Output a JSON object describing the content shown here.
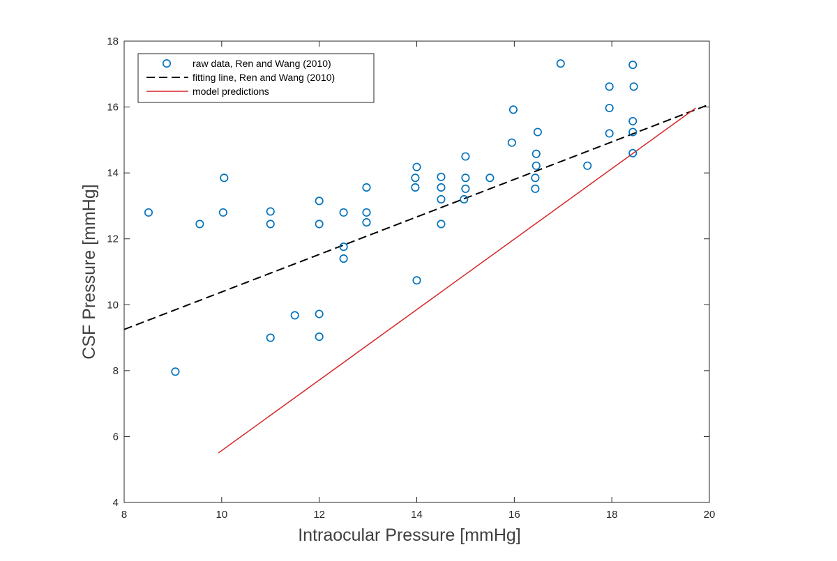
{
  "chart_data": {
    "type": "scatter",
    "xlabel": "Intraocular Pressure [mmHg]",
    "ylabel": "CSF Pressure [mmHg]",
    "xlim": [
      8,
      20
    ],
    "ylim": [
      4,
      18
    ],
    "xticks": [
      8,
      10,
      12,
      14,
      16,
      18,
      20
    ],
    "yticks": [
      4,
      6,
      8,
      10,
      12,
      14,
      16,
      18
    ],
    "grid": false,
    "legend_position": "top-left",
    "series": [
      {
        "name": "raw data, Ren and Wang (2010)",
        "kind": "scatter",
        "marker": "circle-open",
        "color": "#0072BD",
        "points": [
          [
            8.5,
            12.8
          ],
          [
            9.05,
            7.97
          ],
          [
            9.55,
            12.45
          ],
          [
            10.03,
            12.8
          ],
          [
            10.05,
            13.85
          ],
          [
            11.0,
            12.83
          ],
          [
            11.0,
            12.45
          ],
          [
            11.0,
            9.0
          ],
          [
            11.5,
            9.68
          ],
          [
            12.0,
            13.15
          ],
          [
            12.0,
            12.45
          ],
          [
            12.0,
            9.72
          ],
          [
            12.0,
            9.03
          ],
          [
            12.5,
            12.8
          ],
          [
            12.5,
            11.76
          ],
          [
            12.5,
            11.4
          ],
          [
            12.97,
            13.56
          ],
          [
            12.97,
            12.8
          ],
          [
            12.97,
            12.5
          ],
          [
            13.97,
            13.56
          ],
          [
            13.97,
            13.85
          ],
          [
            14.0,
            14.18
          ],
          [
            14.0,
            10.74
          ],
          [
            14.5,
            13.88
          ],
          [
            14.5,
            13.56
          ],
          [
            14.5,
            13.2
          ],
          [
            14.5,
            12.45
          ],
          [
            15.0,
            14.5
          ],
          [
            15.0,
            13.85
          ],
          [
            15.0,
            13.52
          ],
          [
            14.97,
            13.2
          ],
          [
            15.5,
            13.85
          ],
          [
            15.95,
            14.92
          ],
          [
            15.98,
            15.92
          ],
          [
            16.43,
            13.85
          ],
          [
            16.43,
            13.52
          ],
          [
            16.45,
            14.58
          ],
          [
            16.45,
            14.22
          ],
          [
            16.48,
            15.24
          ],
          [
            16.95,
            17.32
          ],
          [
            17.5,
            14.22
          ],
          [
            17.95,
            16.62
          ],
          [
            17.95,
            15.97
          ],
          [
            17.95,
            15.2
          ],
          [
            18.43,
            17.28
          ],
          [
            18.43,
            15.57
          ],
          [
            18.43,
            15.24
          ],
          [
            18.43,
            14.6
          ],
          [
            18.45,
            16.62
          ]
        ]
      },
      {
        "name": "fitting line, Ren and Wang (2010)",
        "kind": "line",
        "style": "dashed",
        "color": "#000000",
        "points": [
          [
            8,
            9.25
          ],
          [
            20,
            16.08
          ]
        ]
      },
      {
        "name": "model predictions",
        "kind": "line",
        "style": "solid",
        "color": "#D62728",
        "points": [
          [
            9.93,
            5.5
          ],
          [
            19.72,
            15.97
          ]
        ]
      }
    ]
  }
}
